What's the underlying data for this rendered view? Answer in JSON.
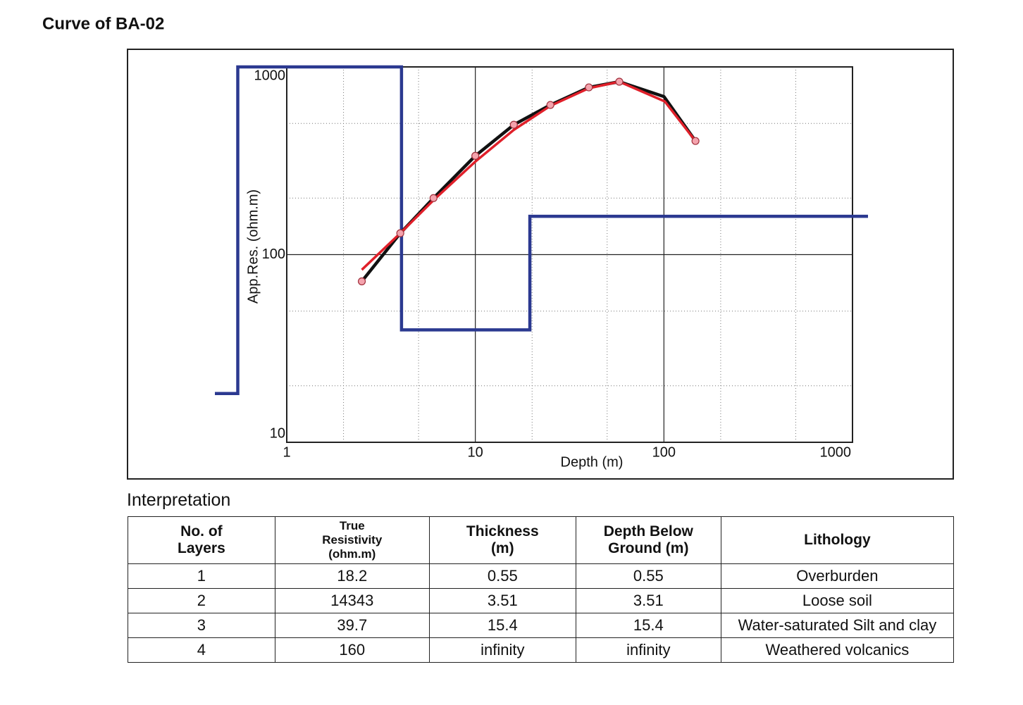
{
  "chart_data": {
    "type": "line",
    "title": "Curve of BA-02",
    "xlabel": "Depth (m)",
    "ylabel": "App.Res. (ohm.m)",
    "xscale": "log",
    "yscale": "log",
    "xlim": [
      1,
      1000
    ],
    "ylim": [
      10,
      1000
    ],
    "xticks": [
      1,
      10,
      100,
      1000
    ],
    "yticks": [
      10,
      100,
      1000
    ],
    "minor_xticks": [
      2,
      5,
      20,
      50,
      200,
      500
    ],
    "minor_yticks": [
      20,
      50,
      200,
      500
    ],
    "grid": true,
    "series": [
      {
        "style": "markers",
        "color": "#f4a3ad",
        "x": [
          2.5,
          4,
          6,
          10,
          16,
          25,
          40,
          58,
          147
        ],
        "values": [
          72,
          130,
          200,
          336,
          492,
          627,
          778,
          834,
          403
        ]
      },
      {
        "style": "line",
        "color": "#111111",
        "x": [
          2.5,
          4,
          6,
          10,
          16,
          25,
          40,
          58,
          100,
          147
        ],
        "values": [
          72,
          130,
          200,
          336,
          492,
          627,
          778,
          834,
          695,
          403
        ]
      },
      {
        "style": "line",
        "color": "#e0202a",
        "x": [
          2.5,
          4,
          6,
          10,
          16,
          25,
          40,
          58,
          101,
          147
        ],
        "values": [
          83,
          130,
          195,
          313,
          462,
          620,
          770,
          834,
          655,
          403
        ]
      }
    ],
    "model_color": "#2b3990"
  },
  "interpretation": "Interpretation",
  "table": {
    "header": [
      [
        "No. of",
        "Layers"
      ],
      [
        "True",
        "Resistivity",
        "(ohm.m)"
      ],
      [
        "Thickness",
        "(m)"
      ],
      [
        "Depth Below",
        "Ground (m)"
      ],
      [
        "Lithology"
      ]
    ],
    "rows": [
      [
        1,
        18.2,
        0.55,
        0.55,
        "Overburden"
      ],
      [
        2,
        14343,
        3.51,
        3.51,
        "Loose soil"
      ],
      [
        3,
        39.7,
        15.4,
        15.4,
        "Water-saturated Silt and clay"
      ],
      [
        4,
        160,
        "infinity",
        "infinity",
        "Weathered volcanics"
      ]
    ]
  }
}
